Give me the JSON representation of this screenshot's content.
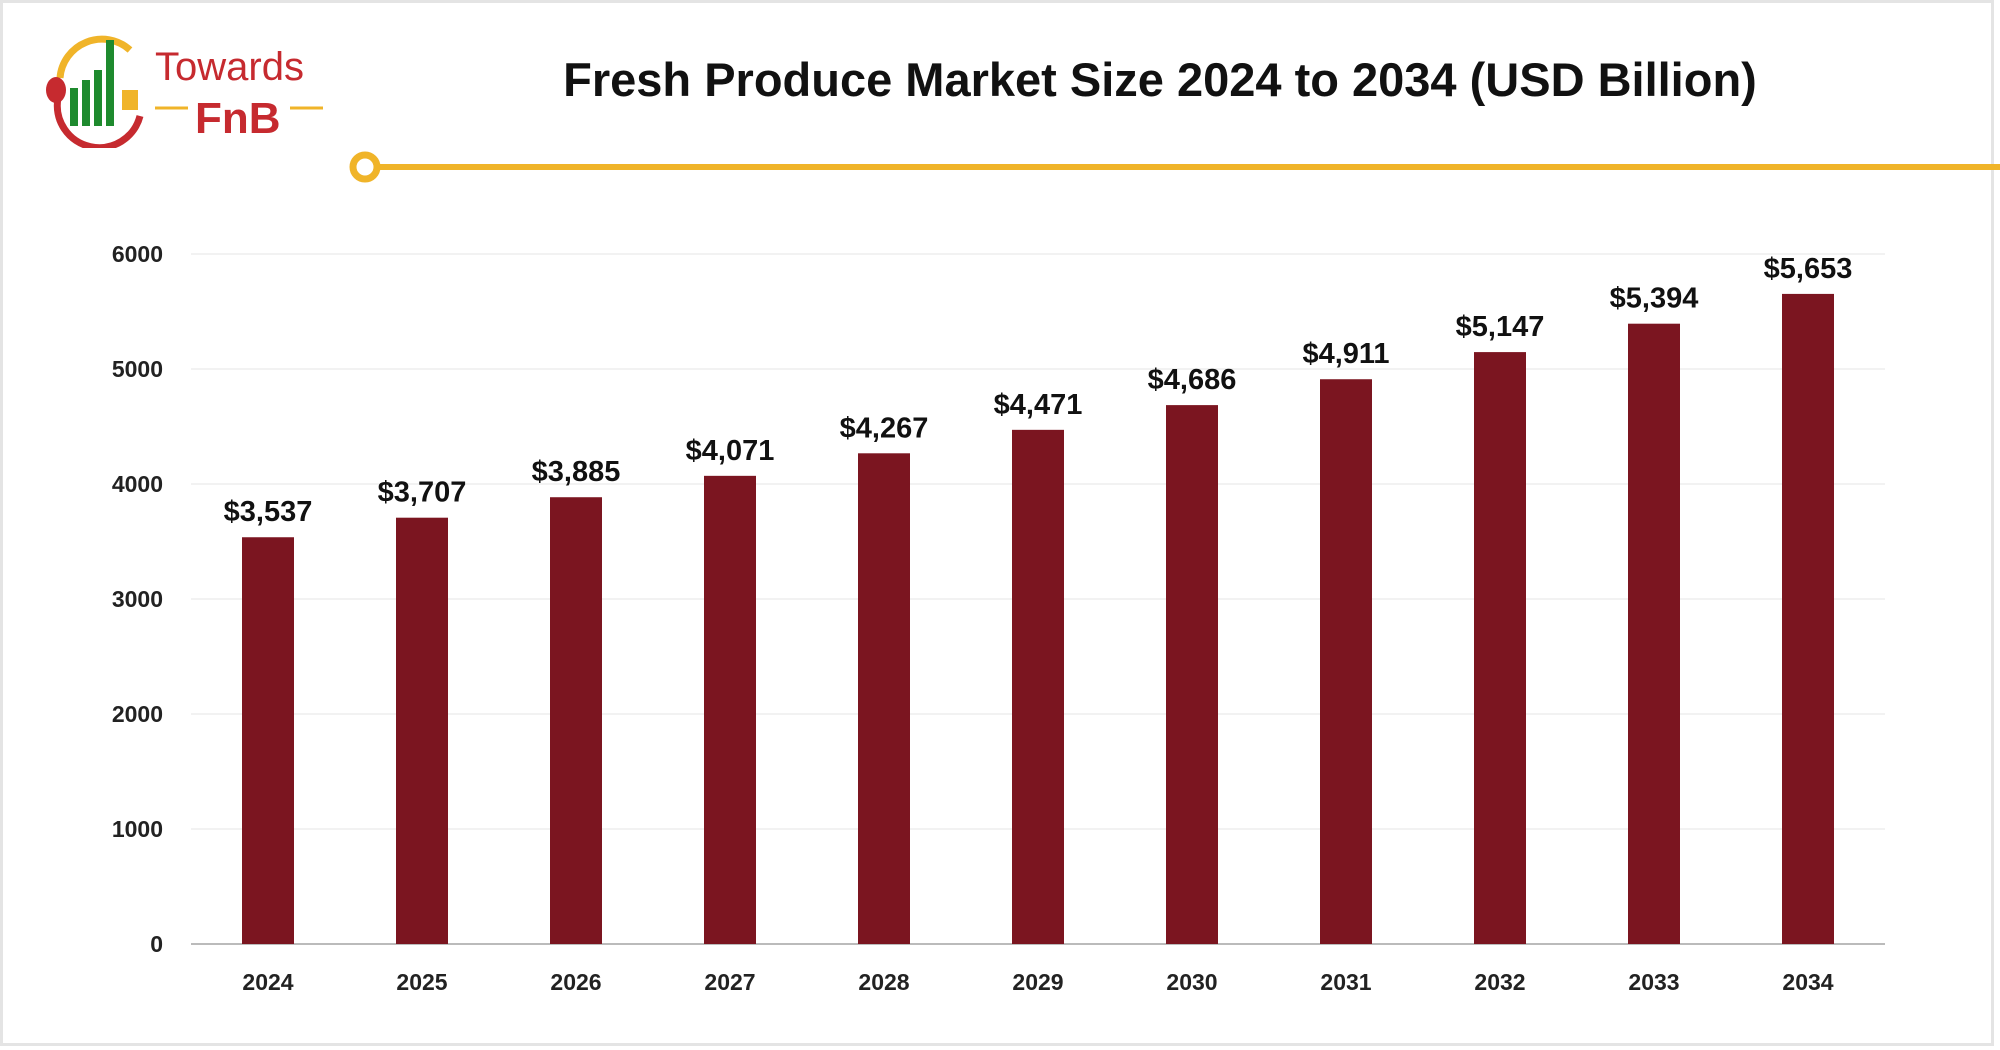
{
  "brand": {
    "logo_text_1": "Towards",
    "logo_text_2": "FnB"
  },
  "colors": {
    "bar": "#7b1520",
    "accent_line": "#f0b429",
    "logo_red": "#c62a2f",
    "logo_green": "#1e8a2e"
  },
  "chart_data": {
    "type": "bar",
    "title": "Fresh Produce Market Size 2024 to 2034 (USD Billion)",
    "xlabel": "",
    "ylabel": "",
    "categories": [
      "2024",
      "2025",
      "2026",
      "2027",
      "2028",
      "2029",
      "2030",
      "2031",
      "2032",
      "2033",
      "2034"
    ],
    "values": [
      3537,
      3707,
      3885,
      4071,
      4267,
      4471,
      4686,
      4911,
      5147,
      5394,
      5653
    ],
    "data_labels": [
      "$3,537",
      "$3,707",
      "$3,885",
      "$4,071",
      "$4,267",
      "$4,471",
      "$4,686",
      "$4,911",
      "$5,147",
      "$5,394",
      "$5,653"
    ],
    "ylim": [
      0,
      6000
    ],
    "yticks": [
      0,
      1000,
      2000,
      3000,
      4000,
      5000,
      6000
    ],
    "grid": true,
    "legend": "none"
  }
}
